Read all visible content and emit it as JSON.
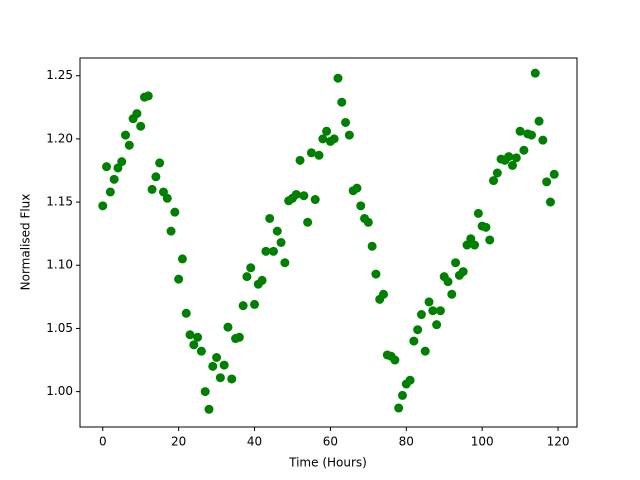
{
  "chart_data": {
    "type": "scatter",
    "xlabel": "Time (Hours)",
    "ylabel": "Normalised Flux",
    "xlim": [
      -6,
      125
    ],
    "ylim": [
      0.972,
      1.264
    ],
    "xticks": [
      0,
      20,
      40,
      60,
      80,
      100,
      120
    ],
    "yticks": [
      {
        "value": 1,
        "label": "1.00"
      },
      1.05,
      {
        "value": 1.1,
        "label": "1.10"
      },
      1.15,
      {
        "value": 1.2,
        "label": "1.20"
      },
      1.25
    ],
    "grid": false,
    "color": "#008000",
    "x": [
      0,
      1,
      2,
      3,
      4,
      5,
      6,
      7,
      8,
      9,
      10,
      11,
      12,
      13,
      14,
      15,
      16,
      17,
      18,
      19,
      20,
      21,
      22,
      23,
      24,
      25,
      26,
      27,
      28,
      29,
      30,
      31,
      32,
      33,
      34,
      35,
      36,
      37,
      38,
      39,
      40,
      41,
      42,
      43,
      44,
      45,
      46,
      47,
      48,
      49,
      50,
      51,
      52,
      53,
      54,
      55,
      56,
      57,
      58,
      59,
      60,
      61,
      62,
      63,
      64,
      65,
      66,
      67,
      68,
      69,
      70,
      71,
      72,
      73,
      74,
      75,
      76,
      77,
      78,
      79,
      80,
      81,
      82,
      83,
      84,
      85,
      86,
      87,
      88,
      89,
      90,
      91,
      92,
      93,
      94,
      95,
      96,
      97,
      98,
      99,
      100,
      101,
      102,
      103,
      104,
      105,
      106,
      107,
      108,
      109,
      110,
      111,
      112,
      113,
      114,
      115,
      116,
      117,
      118,
      119
    ],
    "y": [
      1.147,
      1.178,
      1.158,
      1.168,
      1.177,
      1.182,
      1.203,
      1.195,
      1.216,
      1.22,
      1.21,
      1.233,
      1.234,
      1.16,
      1.17,
      1.181,
      1.158,
      1.153,
      1.127,
      1.142,
      1.089,
      1.105,
      1.062,
      1.045,
      1.037,
      1.043,
      1.032,
      1.0,
      0.986,
      1.02,
      1.027,
      1.011,
      1.021,
      1.051,
      1.01,
      1.042,
      1.043,
      1.068,
      1.091,
      1.098,
      1.069,
      1.085,
      1.088,
      1.111,
      1.137,
      1.111,
      1.127,
      1.118,
      1.102,
      1.151,
      1.153,
      1.156,
      1.183,
      1.155,
      1.134,
      1.189,
      1.152,
      1.187,
      1.2,
      1.206,
      1.198,
      1.2,
      1.248,
      1.229,
      1.213,
      1.203,
      1.159,
      1.161,
      1.147,
      1.137,
      1.134,
      1.115,
      1.093,
      1.073,
      1.077,
      1.029,
      1.028,
      1.025,
      0.987,
      0.997,
      1.006,
      1.009,
      1.04,
      1.049,
      1.061,
      1.032,
      1.071,
      1.064,
      1.053,
      1.064,
      1.091,
      1.087,
      1.077,
      1.102,
      1.092,
      1.095,
      1.116,
      1.121,
      1.116,
      1.141,
      1.131,
      1.13,
      1.12,
      1.167,
      1.173,
      1.184,
      1.183,
      1.186,
      1.179,
      1.185,
      1.206,
      1.191,
      1.204,
      1.203,
      1.252,
      1.214,
      1.199,
      1.166,
      1.15,
      1.172
    ]
  }
}
